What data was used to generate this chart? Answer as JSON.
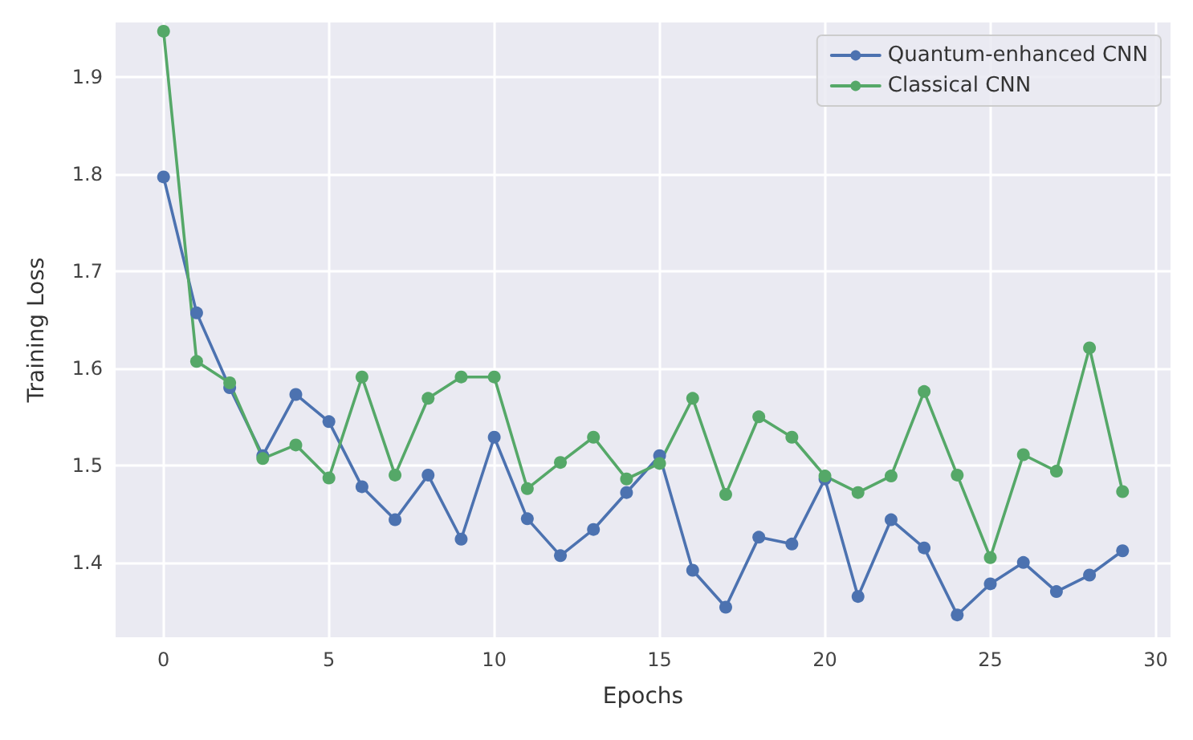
{
  "chart_data": {
    "type": "line",
    "xlabel": "Epochs",
    "ylabel": "Training Loss",
    "x": [
      0,
      1,
      2,
      3,
      4,
      5,
      6,
      7,
      8,
      9,
      10,
      11,
      12,
      13,
      14,
      15,
      16,
      17,
      18,
      19,
      20,
      21,
      22,
      23,
      24,
      25,
      26,
      27,
      28,
      29
    ],
    "series": [
      {
        "name": "Quantum-enhanced CNN",
        "color": "#4c72b0",
        "values": [
          1.797,
          1.657,
          1.58,
          1.51,
          1.573,
          1.545,
          1.478,
          1.444,
          1.49,
          1.424,
          1.529,
          1.445,
          1.407,
          1.434,
          1.472,
          1.51,
          1.392,
          1.354,
          1.426,
          1.419,
          1.486,
          1.365,
          1.444,
          1.415,
          1.346,
          1.378,
          1.4,
          1.37,
          1.387,
          1.412
        ]
      },
      {
        "name": "Classical CNN",
        "color": "#55a868",
        "values": [
          1.947,
          1.607,
          1.585,
          1.507,
          1.521,
          1.487,
          1.591,
          1.49,
          1.569,
          1.591,
          1.591,
          1.476,
          1.503,
          1.529,
          1.486,
          1.502,
          1.569,
          1.47,
          1.55,
          1.529,
          1.489,
          1.472,
          1.489,
          1.576,
          1.49,
          1.405,
          1.511,
          1.494,
          1.621,
          1.473
        ]
      }
    ],
    "xlim": [
      -1.45,
      30.45
    ],
    "xticks": [
      0,
      5,
      10,
      15,
      20,
      25,
      30
    ],
    "ylim": [
      1.323,
      1.956
    ],
    "yticks": [
      1.4,
      1.5,
      1.6,
      1.7,
      1.8,
      1.9
    ],
    "grid": true,
    "legend": "top right",
    "marker": "circle",
    "line_style": "solid"
  }
}
